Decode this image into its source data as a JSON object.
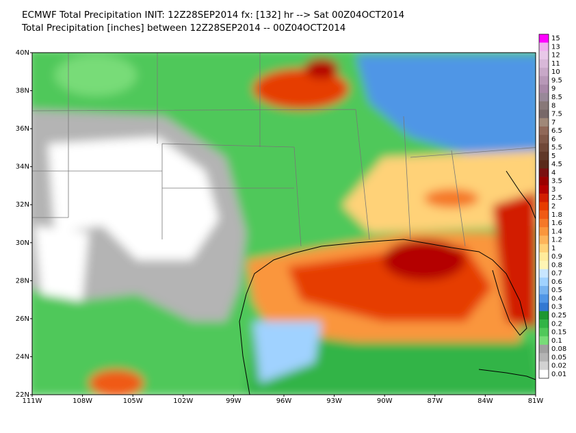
{
  "header": {
    "title": "ECMWF Total Precipitation INIT: 12Z28SEP2014 fx: [132] hr --> Sat 00Z04OCT2014",
    "subtitle": "Total Precipitation [inches] between 12Z28SEP2014 -- 00Z04OCT2014"
  },
  "map": {
    "lat_labels": [
      "40N",
      "38N",
      "36N",
      "34N",
      "32N",
      "30N",
      "28N",
      "26N",
      "24N",
      "22N"
    ],
    "lon_labels": [
      "111W",
      "108W",
      "105W",
      "102W",
      "99W",
      "96W",
      "93W",
      "90W",
      "87W",
      "84W",
      "81W"
    ]
  },
  "colorbar": {
    "labels": [
      15,
      13,
      12,
      11,
      10,
      9.5,
      9,
      8.5,
      8,
      7.5,
      7,
      6.5,
      6,
      5.5,
      5,
      4.5,
      4,
      3.5,
      3,
      2.5,
      2,
      1.8,
      1.6,
      1.4,
      1.2,
      1,
      0.9,
      0.8,
      0.7,
      0.6,
      0.5,
      0.4,
      0.3,
      0.25,
      0.2,
      0.15,
      0.1,
      0.08,
      0.05,
      0.02,
      0.01
    ],
    "colors": [
      "#ff00ff",
      "#f0b0f0",
      "#e8c8e8",
      "#d8b8d8",
      "#c8a8c8",
      "#b898b8",
      "#a888a8",
      "#988898",
      "#887878",
      "#786868",
      "#a08878",
      "#906858",
      "#805848",
      "#704838",
      "#603828",
      "#5a2a1a",
      "#7a1010",
      "#9a0000",
      "#b40000",
      "#d21e00",
      "#e63c00",
      "#f05a14",
      "#f57828",
      "#fa963c",
      "#fdb45a",
      "#ffd278",
      "#ffeb9b",
      "#fff5b4",
      "#c8e6ff",
      "#a0d2ff",
      "#78b4f0",
      "#5096e6",
      "#3278d2",
      "#1e9632",
      "#32b446",
      "#50c85a",
      "#78dc78",
      "#a0a0a0",
      "#b4b4b4",
      "#d2d2d2",
      "#ffffff"
    ]
  }
}
